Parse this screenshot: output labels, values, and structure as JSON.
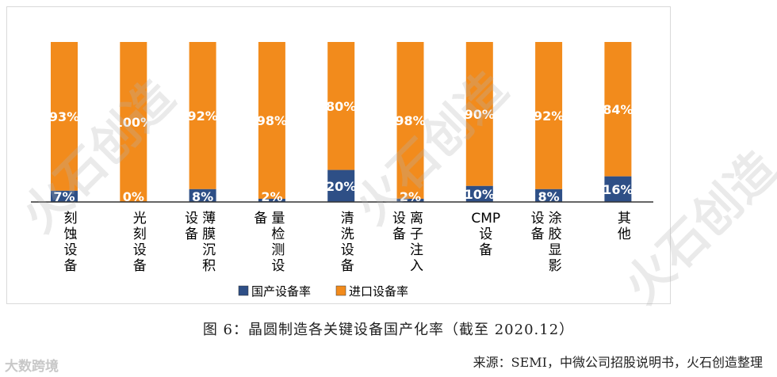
{
  "chart_data": {
    "type": "bar",
    "stacked": true,
    "categories": [
      "刻蚀设备",
      "光刻设备",
      "薄膜沉积设备",
      "量检测设备",
      "清洗设备",
      "离子注入设备",
      "CMP设备",
      "涂胶显影设备",
      "其他"
    ],
    "series": [
      {
        "name": "国产设备率",
        "values": [
          7,
          0,
          8,
          2,
          20,
          2,
          10,
          8,
          16
        ],
        "labels": [
          "7%",
          "0%",
          "8%",
          "2%",
          "20%",
          "2%",
          "10%",
          "8%",
          "16%"
        ]
      },
      {
        "name": "进口设备率",
        "values": [
          93,
          100,
          92,
          98,
          80,
          98,
          90,
          92,
          84
        ],
        "labels": [
          "93%",
          "100%",
          "92%",
          "98%",
          "80%",
          "98%",
          "90%",
          "92%",
          "84%"
        ]
      }
    ],
    "ylim": [
      0,
      100
    ],
    "legend_position": "bottom",
    "colors": {
      "domestic": "#2e4f86",
      "import": "#f28b1c",
      "axis": "#333333"
    }
  },
  "caption": "图 6：晶圆制造各关键设备国产化率（截至 2020.12）",
  "source": "来源：SEMI，中微公司招股说明书，火石创造整理",
  "logo_text": "大数跨境",
  "watermark_text": "火石创造"
}
